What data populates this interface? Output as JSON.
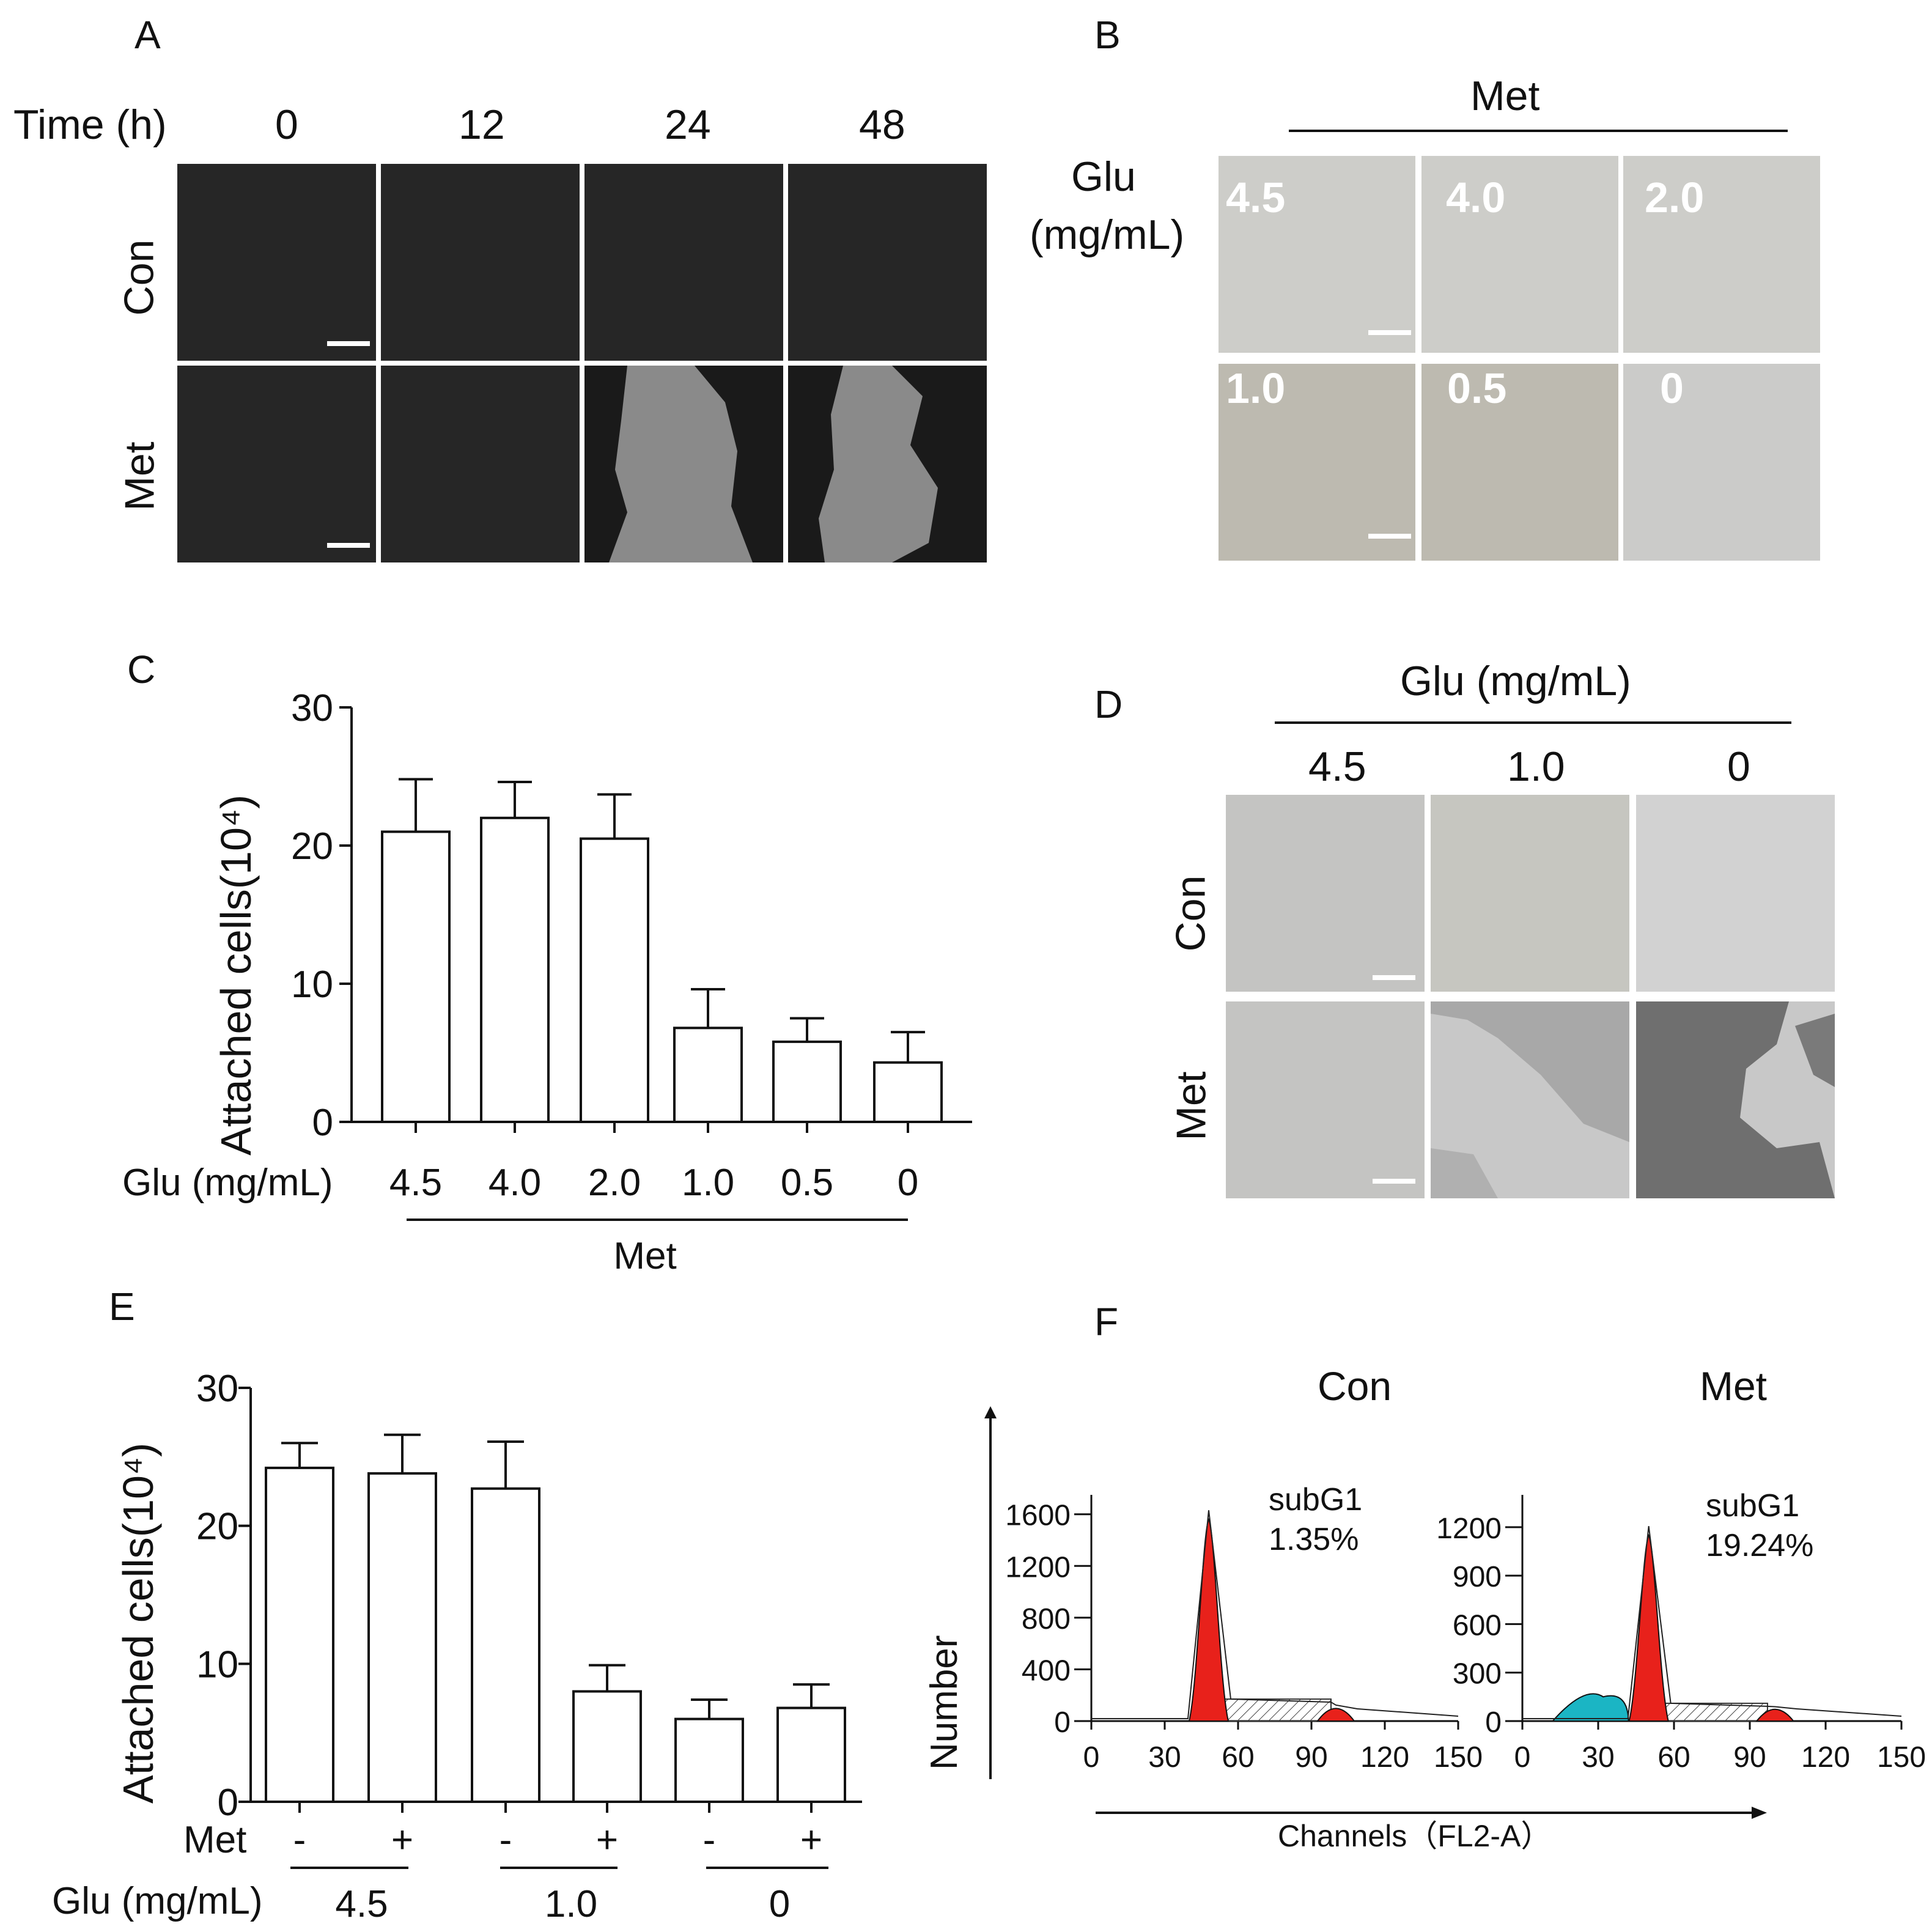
{
  "panels": {
    "a": {
      "letter": "A",
      "time_label": "Time (h)",
      "times": [
        "0",
        "12",
        "24",
        "48"
      ],
      "rows": [
        "Con",
        "Met"
      ]
    },
    "b": {
      "letter": "B",
      "top_label": "Met",
      "glu_label_line1": "Glu",
      "glu_label_line2": "(mg/mL)",
      "cells": [
        "4.5",
        "4.0",
        "2.0",
        "1.0",
        "0.5",
        "0"
      ]
    },
    "c": {
      "letter": "C"
    },
    "d": {
      "letter": "D",
      "top_label": "Glu (mg/mL)",
      "cols": [
        "4.5",
        "1.0",
        "0"
      ],
      "rows": [
        "Con",
        "Met"
      ]
    },
    "e": {
      "letter": "E"
    },
    "f": {
      "letter": "F",
      "con_title": "Con",
      "met_title": "Met",
      "ylabel": "Number",
      "xlabel": "Channels（FL2-A）",
      "con_subg1_label": "subG1",
      "con_subg1_value": "1.35%",
      "met_subg1_label": "subG1",
      "met_subg1_value": "19.24%"
    }
  },
  "chart_data": [
    {
      "type": "bar",
      "panel": "C",
      "ylabel": "Attached cells(10⁴)",
      "ylim": [
        0,
        30
      ],
      "yticks": [
        "0",
        "10",
        "20",
        "30"
      ],
      "row_label": "Glu (mg/mL)",
      "categories": [
        "4.5",
        "4.0",
        "2.0",
        "1.0",
        "0.5",
        "0"
      ],
      "values": [
        21,
        22,
        20.5,
        6.8,
        5.8,
        4.3
      ],
      "errors": [
        3.8,
        2.6,
        3.2,
        2.8,
        1.7,
        2.2
      ],
      "group_label": "Met"
    },
    {
      "type": "bar",
      "panel": "E",
      "ylabel": "Attached cells(10⁴)",
      "ylim": [
        0,
        30
      ],
      "yticks": [
        "0",
        "10",
        "20",
        "30"
      ],
      "met_row_label": "Met",
      "glu_row_label": "Glu (mg/mL)",
      "met_flags": [
        "-",
        "+",
        "-",
        "+",
        "-",
        "+"
      ],
      "glu_groups": [
        "4.5",
        "1.0",
        "0"
      ],
      "values": [
        24.2,
        23.8,
        22.7,
        8,
        6,
        6.8
      ],
      "errors": [
        1.8,
        2.8,
        3.4,
        1.9,
        1.4,
        1.7
      ]
    },
    {
      "type": "area",
      "panel": "F-Con",
      "xlim": [
        0,
        150
      ],
      "xticks": [
        "0",
        "30",
        "60",
        "90",
        "120",
        "150"
      ],
      "ylim": [
        0,
        1750
      ],
      "yticks": [
        "0",
        "400",
        "800",
        "1200",
        "1600"
      ],
      "g1_peak": {
        "x": 48,
        "y": 1560
      },
      "g2_peak": {
        "x": 100,
        "y": 100
      },
      "s_phase": {
        "x_from": 52,
        "x_to": 98,
        "y": 170
      }
    },
    {
      "type": "area",
      "panel": "F-Met",
      "xlim": [
        0,
        150
      ],
      "xticks": [
        "0",
        "30",
        "60",
        "90",
        "120",
        "150"
      ],
      "ylim": [
        0,
        1400
      ],
      "yticks": [
        "0",
        "300",
        "600",
        "900",
        "1200"
      ],
      "subg1_peak": {
        "x": 32,
        "y": 150
      },
      "g1_peak": {
        "x": 50,
        "y": 1150
      },
      "g2_peak": {
        "x": 100,
        "y": 70
      },
      "s_phase": {
        "x_from": 53,
        "x_to": 97,
        "y": 110
      }
    }
  ]
}
